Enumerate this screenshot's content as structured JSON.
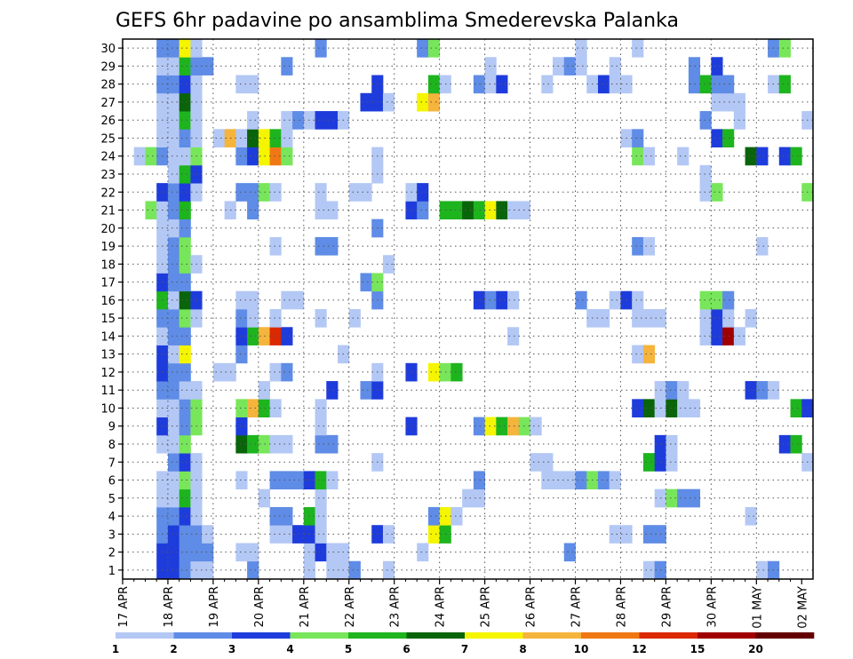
{
  "chart_data": {
    "type": "heatmap",
    "title": "GEFS 6hr padavine po ansamblima Smederevska Palanka",
    "x_tick_labels": [
      "17 APR",
      "18 APR",
      "19 APR",
      "20 APR",
      "21 APR",
      "22 APR",
      "23 APR",
      "24 APR",
      "25 APR",
      "26 APR",
      "27 APR",
      "28 APR",
      "29 APR",
      "30 APR",
      "01 MAY",
      "02 MAY"
    ],
    "y_tick_labels": [
      "1",
      "2",
      "3",
      "4",
      "5",
      "6",
      "7",
      "8",
      "9",
      "10",
      "11",
      "12",
      "13",
      "14",
      "15",
      "16",
      "17",
      "18",
      "19",
      "20",
      "21",
      "22",
      "23",
      "24",
      "25",
      "26",
      "27",
      "28",
      "29",
      "30"
    ],
    "members": 30,
    "time_steps": 61,
    "step_hours": 6,
    "grid": true,
    "colorbar": {
      "labels": [
        "1",
        "2",
        "3",
        "4",
        "5",
        "6",
        "7",
        "8",
        "10",
        "12",
        "15",
        "20"
      ],
      "bins": [
        {
          "from": 1,
          "to": 2,
          "color": "#b4c8f5"
        },
        {
          "from": 2,
          "to": 3,
          "color": "#5f8ce6"
        },
        {
          "from": 3,
          "to": 4,
          "color": "#1e3cdc"
        },
        {
          "from": 4,
          "to": 5,
          "color": "#78e65a"
        },
        {
          "from": 5,
          "to": 6,
          "color": "#1eb41e"
        },
        {
          "from": 6,
          "to": 7,
          "color": "#0a640a"
        },
        {
          "from": 7,
          "to": 8,
          "color": "#f5f500"
        },
        {
          "from": 8,
          "to": 10,
          "color": "#f5b43c"
        },
        {
          "from": 10,
          "to": 12,
          "color": "#f07814"
        },
        {
          "from": 12,
          "to": 15,
          "color": "#dc2800"
        },
        {
          "from": 15,
          "to": 20,
          "color": "#a00000"
        },
        {
          "from": 20,
          "to": 25,
          "color": "#640000"
        }
      ]
    },
    "cells_by_member": {
      "1": {
        "3": 3,
        "4": 3,
        "5": 2,
        "6": 1,
        "7": 1,
        "11": 2,
        "16": 1,
        "18": 1,
        "19": 1,
        "20": 2,
        "23": 1,
        "46": 1,
        "47": 2,
        "56": 1,
        "57": 2
      },
      "2": {
        "3": 3,
        "4": 3,
        "5": 2,
        "6": 2,
        "7": 2,
        "10": 1,
        "11": 1,
        "16": 1,
        "17": 3,
        "18": 1,
        "19": 1,
        "26": 1,
        "39": 2
      },
      "3": {
        "3": 2,
        "4": 3,
        "5": 2,
        "6": 2,
        "7": 1,
        "13": 1,
        "14": 1,
        "15": 3,
        "16": 3,
        "17": 1,
        "22": 3,
        "23": 1,
        "27": 7,
        "28": 5,
        "43": 1,
        "44": 1,
        "46": 2,
        "47": 2
      },
      "4": {
        "3": 2,
        "4": 2,
        "5": 3,
        "6": 1,
        "13": 2,
        "14": 2,
        "16": 5,
        "17": 1,
        "27": 2,
        "28": 7,
        "29": 1,
        "55": 1
      },
      "5": {
        "3": 1,
        "4": 1,
        "5": 5,
        "6": 1,
        "12": 1,
        "17": 1,
        "30": 1,
        "31": 1,
        "47": 1,
        "48": 4,
        "49": 2,
        "50": 2
      },
      "6": {
        "3": 1,
        "4": 1,
        "5": 4,
        "6": 1,
        "10": 1,
        "13": 2,
        "14": 2,
        "15": 2,
        "16": 3,
        "17": 5,
        "18": 1,
        "31": 2,
        "37": 1,
        "38": 1,
        "39": 1,
        "40": 2,
        "41": 4,
        "42": 2,
        "43": 1
      },
      "7": {
        "4": 2,
        "5": 3,
        "6": 1,
        "22": 1,
        "36": 1,
        "37": 1,
        "46": 5,
        "47": 3,
        "48": 1,
        "60": 1
      },
      "8": {
        "3": 1,
        "4": 1,
        "5": 4,
        "10": 6,
        "11": 5,
        "12": 4,
        "13": 1,
        "14": 1,
        "17": 2,
        "18": 2,
        "47": 3,
        "48": 1,
        "58": 3,
        "59": 5
      },
      "9": {
        "3": 3,
        "4": 1,
        "5": 2,
        "6": 4,
        "10": 3,
        "17": 1,
        "25": 3,
        "31": 2,
        "32": 7,
        "33": 5,
        "34": 9,
        "35": 4,
        "36": 1
      },
      "10": {
        "3": 1,
        "4": 1,
        "5": 2,
        "6": 4,
        "10": 4,
        "11": 8,
        "12": 5,
        "13": 1,
        "17": 1,
        "45": 3,
        "46": 6,
        "47": 1,
        "48": 6,
        "49": 1,
        "50": 1,
        "59": 5,
        "60": 3
      },
      "11": {
        "3": 2,
        "4": 2,
        "5": 1,
        "6": 1,
        "12": 1,
        "18": 3,
        "21": 2,
        "22": 3,
        "47": 1,
        "48": 2,
        "49": 1,
        "55": 3,
        "56": 2,
        "57": 1
      },
      "12": {
        "3": 3,
        "4": 2,
        "5": 2,
        "8": 1,
        "9": 1,
        "13": 1,
        "14": 2,
        "22": 1,
        "25": 3,
        "27": 7,
        "28": 4,
        "29": 5
      },
      "13": {
        "3": 3,
        "4": 1,
        "5": 7,
        "10": 2,
        "19": 1,
        "45": 1,
        "46": 8
      },
      "14": {
        "3": 1,
        "4": 2,
        "5": 2,
        "10": 3,
        "11": 5,
        "12": 8,
        "13": 12,
        "14": 3,
        "34": 1,
        "51": 1,
        "52": 3,
        "53": 15,
        "54": 1
      },
      "15": {
        "3": 2,
        "4": 2,
        "5": 4,
        "6": 1,
        "10": 2,
        "11": 1,
        "13": 1,
        "17": 1,
        "20": 1,
        "41": 1,
        "42": 1,
        "45": 1,
        "46": 1,
        "47": 1,
        "51": 1,
        "52": 3,
        "53": 1,
        "55": 1
      },
      "16": {
        "3": 5,
        "4": 1,
        "5": 6,
        "6": 3,
        "10": 1,
        "11": 1,
        "14": 1,
        "15": 1,
        "22": 2,
        "31": 3,
        "32": 2,
        "33": 3,
        "34": 1,
        "40": 2,
        "43": 1,
        "44": 3,
        "45": 1,
        "51": 4,
        "52": 4,
        "53": 2
      },
      "17": {
        "3": 3,
        "4": 2,
        "5": 2,
        "21": 2,
        "22": 4
      },
      "18": {
        "3": 1,
        "4": 2,
        "5": 4,
        "6": 1,
        "23": 1
      },
      "19": {
        "3": 1,
        "4": 2,
        "5": 4,
        "13": 1,
        "17": 2,
        "18": 2,
        "45": 2,
        "46": 1,
        "56": 1
      },
      "20": {
        "3": 1,
        "4": 1,
        "5": 2,
        "22": 2
      },
      "21": {
        "2": 4,
        "3": 1,
        "4": 2,
        "5": 5,
        "9": 1,
        "11": 2,
        "17": 1,
        "18": 1,
        "25": 3,
        "26": 2,
        "28": 5,
        "29": 5,
        "30": 6,
        "31": 5,
        "32": 7,
        "33": 6,
        "34": 1,
        "35": 1
      },
      "22": {
        "3": 3,
        "4": 2,
        "5": 3,
        "6": 1,
        "10": 2,
        "11": 2,
        "12": 4,
        "13": 1,
        "17": 1,
        "20": 1,
        "21": 1,
        "25": 1,
        "26": 3,
        "51": 1,
        "52": 4,
        "60": 4
      },
      "23": {
        "4": 1,
        "5": 5,
        "6": 3,
        "22": 1,
        "51": 1
      },
      "24": {
        "1": 1,
        "2": 4,
        "3": 2,
        "4": 1,
        "5": 1,
        "6": 4,
        "10": 2,
        "11": 3,
        "12": 7,
        "13": 11,
        "14": 4,
        "22": 1,
        "45": 4,
        "46": 1,
        "49": 1,
        "55": 6,
        "56": 3,
        "58": 3,
        "59": 5
      },
      "25": {
        "3": 1,
        "4": 1,
        "5": 2,
        "6": 1,
        "8": 1,
        "9": 8,
        "10": 1,
        "11": 6,
        "12": 7,
        "13": 5,
        "14": 1,
        "44": 1,
        "45": 2,
        "52": 3,
        "53": 5
      },
      "26": {
        "3": 1,
        "4": 1,
        "5": 5,
        "6": 1,
        "11": 1,
        "14": 1,
        "15": 2,
        "16": 1,
        "17": 3,
        "18": 3,
        "19": 1,
        "51": 2,
        "54": 1,
        "60": 1
      },
      "27": {
        "3": 1,
        "4": 1,
        "5": 6,
        "6": 1,
        "21": 3,
        "22": 3,
        "23": 1,
        "26": 7,
        "27": 9,
        "52": 1,
        "53": 1,
        "54": 1
      },
      "28": {
        "3": 2,
        "4": 2,
        "5": 3,
        "6": 1,
        "10": 1,
        "11": 1,
        "22": 3,
        "27": 5,
        "28": 1,
        "31": 2,
        "32": 1,
        "33": 3,
        "37": 1,
        "41": 1,
        "42": 3,
        "43": 1,
        "44": 1,
        "50": 2,
        "51": 5,
        "52": 2,
        "53": 2,
        "57": 1,
        "58": 5
      },
      "29": {
        "3": 1,
        "4": 1,
        "5": 5,
        "6": 2,
        "7": 2,
        "14": 2,
        "32": 1,
        "38": 1,
        "39": 2,
        "40": 1,
        "43": 1,
        "50": 2,
        "52": 3
      },
      "30": {
        "3": 2,
        "4": 2,
        "5": 7,
        "6": 1,
        "17": 2,
        "26": 2,
        "27": 4,
        "40": 1,
        "45": 1,
        "57": 2,
        "58": 4
      }
    }
  }
}
